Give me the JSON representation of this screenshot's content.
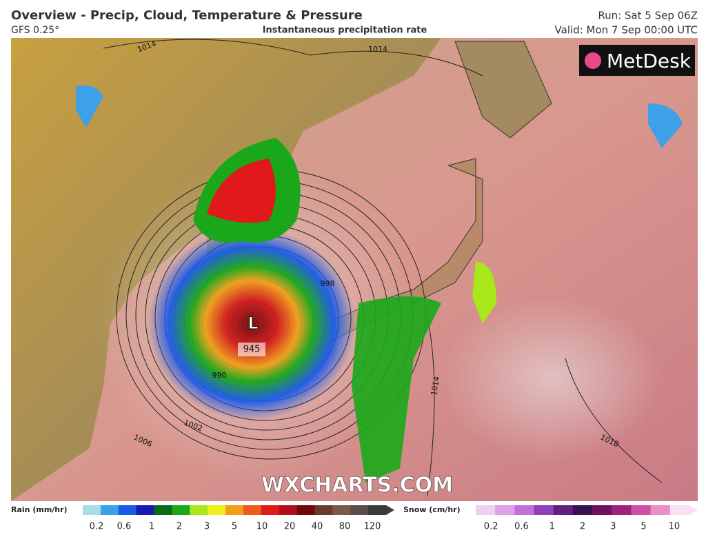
{
  "header": {
    "title": "Overview - Precip, Cloud, Temperature & Pressure",
    "model": "GFS 0.25°",
    "subtitle": "Instantaneous precipitation rate",
    "run": "Run: Sat 5 Sep 06Z",
    "valid": "Valid: Mon 7 Sep 00:00 UTC"
  },
  "map": {
    "logo": "MetDesk",
    "watermark": "WXCHARTS.COM",
    "low_label": "L",
    "low_pressure": "945",
    "isobar_labels": [
      "1014",
      "1014",
      "998",
      "990",
      "1002",
      "1006",
      "1014",
      "1018"
    ]
  },
  "legend": {
    "rain_label": "Rain (mm/hr)",
    "rain_ticks": [
      "0.2",
      "0.6",
      "1",
      "2",
      "3",
      "5",
      "10",
      "20",
      "40",
      "80",
      "120"
    ],
    "rain_colors": [
      "#a8dce8",
      "#3ea0e8",
      "#1b5ae8",
      "#1a1ab0",
      "#0a6a1a",
      "#1aa81a",
      "#a8e81a",
      "#f0f01a",
      "#f0a01a",
      "#f05a1a",
      "#e01a1a",
      "#b0101a",
      "#700a0a",
      "#6a3a2a",
      "#7a5a4a",
      "#5a4a4a",
      "#3a3a3a"
    ],
    "snow_label": "Snow (cm/hr)",
    "snow_ticks": [
      "0.2",
      "0.6",
      "1",
      "2",
      "3",
      "5",
      "10"
    ],
    "snow_colors": [
      "#f0d0f0",
      "#e0a0e8",
      "#c070d8",
      "#9040b8",
      "#602080",
      "#3a1050",
      "#701060",
      "#a02080",
      "#d050a8",
      "#e890c8",
      "#f8e0f0"
    ]
  }
}
